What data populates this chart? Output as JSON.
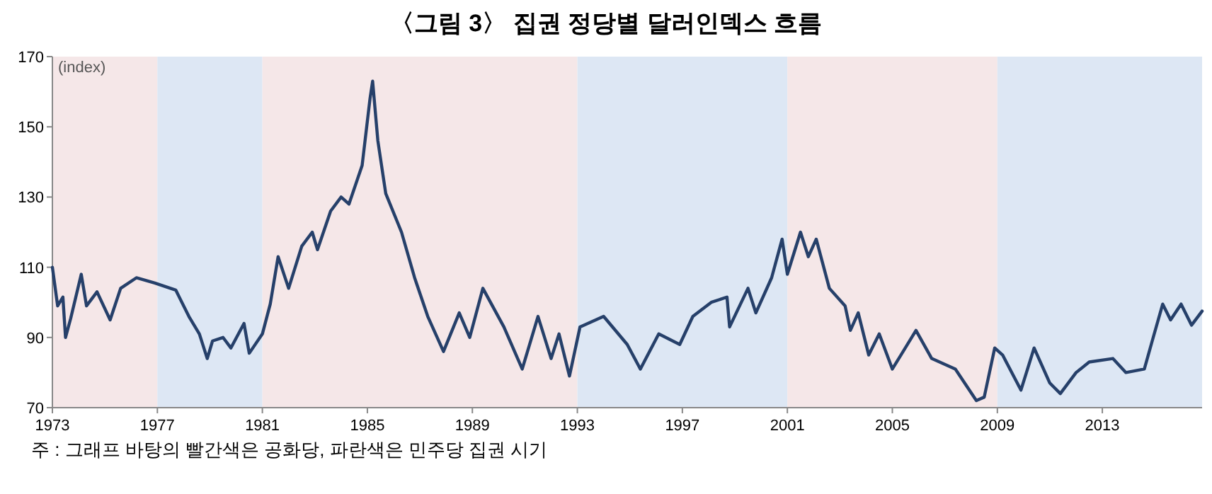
{
  "chart_data": {
    "type": "line",
    "title": "〈그림 3〉 집권 정당별 달러인덱스 흐름",
    "ylabel": "(index)",
    "annotations": [
      "주 : 그래프 바탕의 빨간색은 공화당, 파란색은 민주당 집권 시기"
    ],
    "xlim": [
      1973,
      2016.8
    ],
    "xticks": [
      1973,
      1977,
      1981,
      1985,
      1989,
      1993,
      1997,
      2001,
      2005,
      2009,
      2013
    ],
    "ylim": [
      70,
      170
    ],
    "yticks": [
      70,
      90,
      110,
      130,
      150,
      170
    ],
    "grid": false,
    "bands": [
      {
        "axis": "x",
        "from": 1973,
        "to": 1977,
        "color": "#f5e7e8"
      },
      {
        "axis": "x",
        "from": 1977,
        "to": 1981,
        "color": "#dde7f4"
      },
      {
        "axis": "x",
        "from": 1981,
        "to": 1993,
        "color": "#f5e7e8"
      },
      {
        "axis": "x",
        "from": 1993,
        "to": 2001,
        "color": "#dde7f4"
      },
      {
        "axis": "x",
        "from": 2001,
        "to": 2009,
        "color": "#f5e7e8"
      },
      {
        "axis": "x",
        "from": 2009,
        "to": 2016.8,
        "color": "#dde7f4"
      }
    ],
    "series": [
      {
        "color": "#26406a",
        "x": [
          1973,
          1973.2,
          1973.4,
          1973.5,
          1973.7,
          1974.1,
          1974.3,
          1974.7,
          1975.2,
          1975.6,
          1976.2,
          1976.9,
          1977.7,
          1978.2,
          1978.6,
          1978.9,
          1979.1,
          1979.5,
          1979.8,
          1980.3,
          1980.5,
          1981.0,
          1981.3,
          1981.6,
          1982.0,
          1982.5,
          1982.9,
          1983.1,
          1983.6,
          1984.0,
          1984.3,
          1984.8,
          1985.1,
          1985.2,
          1985.4,
          1985.7,
          1986.3,
          1986.8,
          1987.3,
          1987.9,
          1988.5,
          1988.9,
          1989.4,
          1990.2,
          1990.9,
          1991.5,
          1992.0,
          1992.3,
          1992.7,
          1993.1,
          1994.0,
          1994.9,
          1995.4,
          1996.1,
          1996.9,
          1997.4,
          1998.1,
          1998.7,
          1998.8,
          1999.5,
          1999.8,
          2000.4,
          2000.8,
          2001.0,
          2001.5,
          2001.8,
          2002.1,
          2002.6,
          2003.2,
          2003.4,
          2003.7,
          2004.1,
          2004.5,
          2005.0,
          2005.9,
          2006.5,
          2007.4,
          2008.2,
          2008.5,
          2008.9,
          2009.2,
          2009.9,
          2010.4,
          2011.0,
          2011.4,
          2012.0,
          2012.5,
          2013.4,
          2013.9,
          2014.6,
          2014.9,
          2015.3,
          2015.6,
          2016.0,
          2016.4,
          2016.8
        ],
        "values": [
          110,
          99,
          101.5,
          90,
          95.5,
          108,
          99,
          103,
          95,
          104,
          107,
          105.5,
          103.5,
          96,
          91,
          84,
          89,
          90,
          87,
          94,
          85.5,
          91,
          99.5,
          113,
          104,
          116,
          120,
          115,
          126,
          130,
          128,
          139,
          158,
          163,
          146,
          131,
          120,
          107,
          96,
          86,
          97,
          90,
          104,
          93,
          81,
          96,
          84,
          91,
          79,
          93,
          96,
          88,
          81,
          91,
          88,
          96,
          100,
          101.5,
          93,
          104,
          97,
          107,
          118,
          108,
          120,
          113,
          118,
          104,
          99,
          92,
          97,
          85,
          91,
          81,
          92,
          84,
          81,
          72,
          73,
          87,
          85,
          75,
          87,
          77,
          74,
          80,
          83,
          84,
          80,
          81,
          89,
          99.5,
          95,
          99.5,
          93.5,
          97.5
        ]
      }
    ]
  }
}
